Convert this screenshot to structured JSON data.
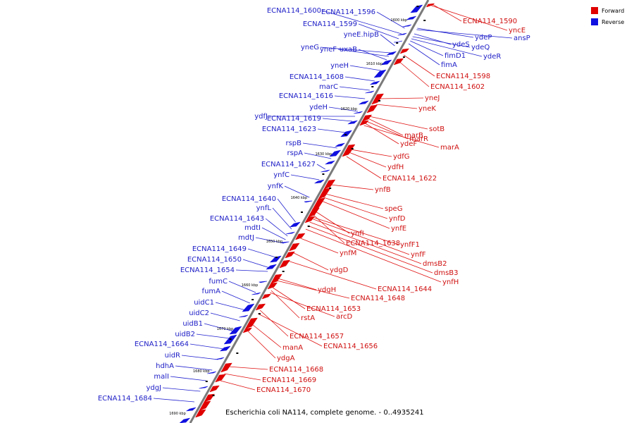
{
  "caption": "Escherichia coli NA114, complete genome. - 0..4935241",
  "legend": [
    {
      "label": "Forward",
      "color": "#e00000"
    },
    {
      "label": "Reverse",
      "color": "#1010e0"
    }
  ],
  "colors": {
    "forward": "#e00000",
    "reverse": "#1010e0",
    "forward_line": "#e01010",
    "reverse_line": "#2020d0",
    "backbone": "#7a7a7a"
  },
  "ticks": [
    "1600 kbp",
    "1610 kbp",
    "1620 kbp",
    "1630 kbp",
    "1640 kbp",
    "1650 kbp",
    "1660 kbp",
    "1670 kbp",
    "1680 kbp",
    "1690 kbp"
  ],
  "reverse_labels": [
    "ECNA114_1600",
    "ECNA114_1596",
    "ECNA114_1599",
    "yneE.hipB",
    "yneG",
    "yneF",
    "uxaB",
    "yneH",
    "ECNA114_1608",
    "marC",
    "ECNA114_1616",
    "ydeH",
    "ydfJ",
    "ECNA114_1619",
    "ECNA114_1623",
    "rspB",
    "rspA",
    "ECNA114_1627",
    "ynfC",
    "ynfK",
    "ECNA114_1640",
    "ynfL",
    "ECNA114_1643",
    "mdtI",
    "mdtJ",
    "ECNA114_1649",
    "ECNA114_1650",
    "ECNA114_1654",
    "fumC",
    "fumA",
    "uidC1",
    "uidC2",
    "uidB1",
    "uidB2",
    "ECNA114_1664",
    "uidR",
    "hdhA",
    "malI",
    "ydgJ",
    "ECNA114_1684"
  ],
  "reverse_labels_right": [
    "ydeP",
    "ansP",
    "ydeS",
    "ydeQ",
    "ydeR",
    "fimD1",
    "fimA"
  ],
  "forward_labels": [
    "yncE",
    "ECNA114_1590",
    "ECNA114_1598",
    "ECNA114_1602",
    "yneJ",
    "yneK",
    "sotB",
    "marB",
    "marR",
    "ydeF",
    "marA",
    "ydfG",
    "ydfH",
    "ECNA114_1622",
    "ynfB",
    "speG",
    "ynfD",
    "ynfE",
    "ynfI",
    "ECNA114_1638",
    "ynfF1",
    "ynfM",
    "ynfF",
    "dmsB2",
    "dmsB3",
    "ynfH",
    "ydgD",
    "ECNA114_1644",
    "ydgH",
    "ECNA114_1648",
    "ECNA114_1653",
    "rstA",
    "arcD",
    "ECNA114_1657",
    "ECNA114_1656",
    "manA",
    "ydgA",
    "ECNA114_1668",
    "ECNA114_1669",
    "ECNA114_1670"
  ]
}
